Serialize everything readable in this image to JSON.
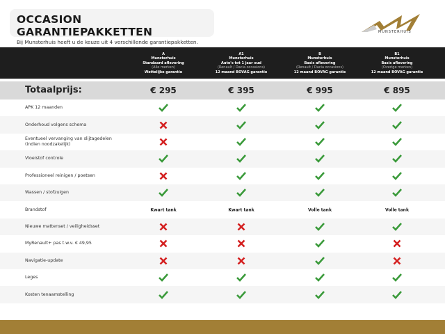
{
  "header": {
    "title": "OCCASION GARANTIEPAKKETTEN",
    "subtitle": "Bij Munsterhuis heeft u de keuze uit 4 verschillende garantiepakketten.",
    "logo_text": "MUNSTERHUIS"
  },
  "colors": {
    "check": "#3a9a3a",
    "cross": "#d42020",
    "gold": "#a27f36",
    "header_bg": "#1e1e1e"
  },
  "packages": [
    {
      "code": "A",
      "brand": "Munsterhuis",
      "type": "Standaard aflevering",
      "scope": "(Alle merken)",
      "warranty": "Wettelijke garantie",
      "price": "€ 295"
    },
    {
      "code": "A1",
      "brand": "Munsterhuis",
      "type": "Auto's tot 1 jaar oud",
      "scope": "(Renault / Dacia occasions)",
      "warranty": "12 maand BOVAG garantie",
      "price": "€ 395"
    },
    {
      "code": "B",
      "brand": "Munsterhuis",
      "type": "Basis aflevering",
      "scope": "(Renault / Dacia occasions)",
      "warranty": "12 maand BOVAG garantie",
      "price": "€ 995"
    },
    {
      "code": "B1",
      "brand": "Munsterhuis",
      "type": "Basis aflevering",
      "scope": "(Overige merken)",
      "warranty": "12 maand BOVAG garantie",
      "price": "€ 895"
    }
  ],
  "total_label": "Totaalprijs:",
  "rows": [
    {
      "label": "APK 12 maanden",
      "values": [
        "check",
        "check",
        "check",
        "check"
      ]
    },
    {
      "label": "Onderhoud volgens schema",
      "values": [
        "cross",
        "check",
        "check",
        "check"
      ]
    },
    {
      "label": "Eventueel vervanging van slijtagedelen\n(indien noodzakelijk)",
      "values": [
        "cross",
        "check",
        "check",
        "check"
      ]
    },
    {
      "label": "Vloeistof controle",
      "values": [
        "check",
        "check",
        "check",
        "check"
      ]
    },
    {
      "label": "Professioneel reinigen  / poetsen",
      "values": [
        "cross",
        "check",
        "check",
        "check"
      ]
    },
    {
      "label": "Wassen / stofzuigen",
      "values": [
        "check",
        "check",
        "check",
        "check"
      ]
    },
    {
      "label": "Brandstof",
      "values": [
        "Kwart tank",
        "Kwart tank",
        "Volle  tank",
        "Volle  tank"
      ]
    },
    {
      "label": "Nieuwe mattenset / veiligheidsset",
      "values": [
        "cross",
        "cross",
        "check",
        "check"
      ]
    },
    {
      "label": "MyRenault+ pas t.w.v. € 49,95",
      "values": [
        "cross",
        "cross",
        "check",
        "cross"
      ]
    },
    {
      "label": "Navigatie-update",
      "values": [
        "cross",
        "cross",
        "check",
        "cross"
      ]
    },
    {
      "label": "Leges",
      "values": [
        "check",
        "check",
        "check",
        "check"
      ]
    },
    {
      "label": "Kosten tenaamstelling",
      "values": [
        "check",
        "check",
        "check",
        "check"
      ]
    }
  ]
}
